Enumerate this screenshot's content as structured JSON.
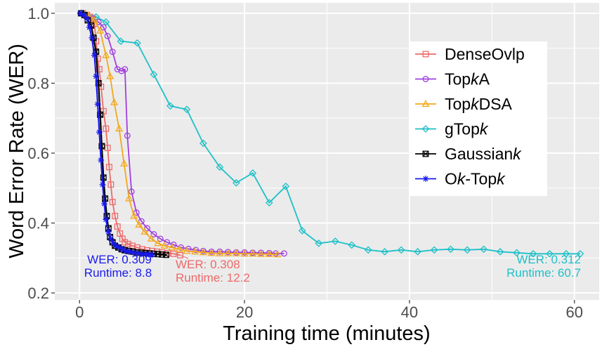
{
  "chart_data": {
    "type": "line",
    "title": "",
    "xlabel": "Training time (minutes)",
    "ylabel": "Word Error Rate (WER)",
    "xlim": [
      -3,
      63
    ],
    "ylim": [
      0.18,
      1.03
    ],
    "grid": true,
    "legend_position": "top-right",
    "x_ticks": [
      0,
      20,
      40,
      60
    ],
    "x_tick_labels": [
      "0",
      "20",
      "40",
      "60"
    ],
    "y_ticks": [
      0.2,
      0.4,
      0.6,
      0.8,
      1.0
    ],
    "y_tick_labels": [
      "0.2",
      "0.4",
      "0.6",
      "0.8",
      "1.0"
    ],
    "series": [
      {
        "name": "DenseOvlp",
        "legend": {
          "pre": "DenseOvlp",
          "italic": "",
          "post": ""
        },
        "color": "#ee6a6a",
        "marker": "square",
        "points": [
          [
            0.4,
            1.0
          ],
          [
            0.9,
            0.995
          ],
          [
            1.3,
            0.99
          ],
          [
            1.6,
            0.985
          ],
          [
            1.8,
            0.97
          ],
          [
            2.0,
            0.92
          ],
          [
            2.2,
            0.87
          ],
          [
            2.4,
            0.84
          ],
          [
            2.6,
            0.79
          ],
          [
            2.9,
            0.72
          ],
          [
            3.2,
            0.67
          ],
          [
            3.4,
            0.615
          ],
          [
            3.6,
            0.56
          ],
          [
            3.8,
            0.51
          ],
          [
            4.0,
            0.46
          ],
          [
            4.3,
            0.42
          ],
          [
            4.6,
            0.39
          ],
          [
            4.9,
            0.37
          ],
          [
            5.2,
            0.355
          ],
          [
            5.5,
            0.345
          ],
          [
            5.9,
            0.34
          ],
          [
            6.4,
            0.335
          ],
          [
            7.0,
            0.33
          ],
          [
            7.6,
            0.325
          ],
          [
            8.2,
            0.322
          ],
          [
            8.8,
            0.32
          ],
          [
            9.4,
            0.318
          ],
          [
            10.0,
            0.316
          ],
          [
            10.7,
            0.314
          ],
          [
            11.4,
            0.312
          ],
          [
            12.2,
            0.308
          ]
        ]
      },
      {
        "name": "TopkA",
        "legend": {
          "pre": "Top",
          "italic": "k",
          "post": "A"
        },
        "color": "#a040dd",
        "marker": "circle",
        "points": [
          [
            0.1,
            1.0
          ],
          [
            0.8,
            0.99
          ],
          [
            1.6,
            0.985
          ],
          [
            2.3,
            0.975
          ],
          [
            2.9,
            0.96
          ],
          [
            3.4,
            0.935
          ],
          [
            4.0,
            0.89
          ],
          [
            4.6,
            0.84
          ],
          [
            5.1,
            0.835
          ],
          [
            5.5,
            0.84
          ],
          [
            5.8,
            0.65
          ],
          [
            6.3,
            0.49
          ],
          [
            6.9,
            0.43
          ],
          [
            7.5,
            0.405
          ],
          [
            8.2,
            0.385
          ],
          [
            9.0,
            0.368
          ],
          [
            9.8,
            0.355
          ],
          [
            10.6,
            0.345
          ],
          [
            11.4,
            0.338
          ],
          [
            12.3,
            0.33
          ],
          [
            13.2,
            0.326
          ],
          [
            14.1,
            0.323
          ],
          [
            15.0,
            0.32
          ],
          [
            16.0,
            0.318
          ],
          [
            17.0,
            0.318
          ],
          [
            18.0,
            0.317
          ],
          [
            19.0,
            0.316
          ],
          [
            20.0,
            0.316
          ],
          [
            21.0,
            0.315
          ],
          [
            22.0,
            0.315
          ],
          [
            23.0,
            0.314
          ],
          [
            23.8,
            0.313
          ],
          [
            24.8,
            0.313
          ]
        ]
      },
      {
        "name": "TopkDSA",
        "legend": {
          "pre": "Top",
          "italic": "k",
          "post": "DSA"
        },
        "color": "#f2a81d",
        "marker": "triangle",
        "points": [
          [
            0.2,
            1.0
          ],
          [
            1.0,
            0.995
          ],
          [
            1.8,
            0.98
          ],
          [
            2.5,
            0.95
          ],
          [
            3.2,
            0.88
          ],
          [
            3.7,
            0.82
          ],
          [
            4.2,
            0.745
          ],
          [
            4.8,
            0.67
          ],
          [
            5.4,
            0.57
          ],
          [
            6.0,
            0.47
          ],
          [
            6.6,
            0.42
          ],
          [
            7.2,
            0.395
          ],
          [
            7.9,
            0.375
          ],
          [
            8.7,
            0.355
          ],
          [
            9.5,
            0.342
          ],
          [
            10.3,
            0.335
          ],
          [
            11.2,
            0.33
          ],
          [
            12.1,
            0.325
          ],
          [
            13.0,
            0.32
          ],
          [
            14.0,
            0.318
          ],
          [
            15.0,
            0.316
          ],
          [
            16.0,
            0.314
          ],
          [
            17.0,
            0.313
          ],
          [
            18.0,
            0.313
          ],
          [
            19.0,
            0.313
          ],
          [
            20.0,
            0.312
          ],
          [
            21.0,
            0.312
          ],
          [
            22.0,
            0.311
          ],
          [
            23.0,
            0.311
          ],
          [
            24.0,
            0.31
          ]
        ]
      },
      {
        "name": "gTopk",
        "legend": {
          "pre": "gTop",
          "italic": "k",
          "post": ""
        },
        "color": "#1ec0c8",
        "marker": "diamond",
        "points": [
          [
            0.3,
            1.0
          ],
          [
            2.0,
            0.99
          ],
          [
            3.2,
            0.975
          ],
          [
            5.0,
            0.92
          ],
          [
            7.0,
            0.915
          ],
          [
            9.0,
            0.825
          ],
          [
            11.0,
            0.735
          ],
          [
            13.0,
            0.725
          ],
          [
            15.0,
            0.628
          ],
          [
            17.0,
            0.56
          ],
          [
            19.0,
            0.515
          ],
          [
            21.0,
            0.543
          ],
          [
            23.0,
            0.458
          ],
          [
            25.0,
            0.505
          ],
          [
            27.0,
            0.378
          ],
          [
            29.0,
            0.342
          ],
          [
            31.0,
            0.348
          ],
          [
            33.0,
            0.337
          ],
          [
            35.0,
            0.323
          ],
          [
            37.0,
            0.318
          ],
          [
            39.0,
            0.323
          ],
          [
            41.0,
            0.318
          ],
          [
            43.0,
            0.323
          ],
          [
            45.0,
            0.325
          ],
          [
            47.0,
            0.323
          ],
          [
            49.0,
            0.325
          ],
          [
            51.0,
            0.318
          ],
          [
            53.0,
            0.315
          ],
          [
            55.0,
            0.312
          ],
          [
            57.0,
            0.312
          ],
          [
            59.0,
            0.312
          ],
          [
            60.7,
            0.312
          ]
        ]
      },
      {
        "name": "Gaussiank",
        "legend": {
          "pre": "Gaussian",
          "italic": "k",
          "post": ""
        },
        "color": "#000000",
        "marker": "boxcross",
        "points": [
          [
            0.2,
            1.0
          ],
          [
            0.6,
            0.995
          ],
          [
            1.0,
            0.98
          ],
          [
            1.4,
            0.965
          ],
          [
            1.7,
            0.93
          ],
          [
            2.0,
            0.89
          ],
          [
            2.3,
            0.8
          ],
          [
            2.5,
            0.71
          ],
          [
            2.7,
            0.62
          ],
          [
            2.9,
            0.53
          ],
          [
            3.1,
            0.47
          ],
          [
            3.3,
            0.42
          ],
          [
            3.5,
            0.385
          ],
          [
            3.7,
            0.36
          ],
          [
            4.0,
            0.345
          ],
          [
            4.3,
            0.335
          ],
          [
            4.7,
            0.33
          ],
          [
            5.1,
            0.325
          ],
          [
            5.5,
            0.322
          ],
          [
            6.0,
            0.32
          ],
          [
            6.5,
            0.318
          ],
          [
            7.0,
            0.316
          ],
          [
            7.5,
            0.315
          ],
          [
            8.0,
            0.314
          ],
          [
            8.5,
            0.313
          ],
          [
            9.0,
            0.312
          ],
          [
            9.5,
            0.311
          ],
          [
            10.0,
            0.31
          ],
          [
            10.5,
            0.309
          ]
        ]
      },
      {
        "name": "Ok-Topk",
        "legend": {
          "pre": "O",
          "italic": "k",
          "post": "-Top",
          "italic2": "k"
        },
        "color": "#1a1aee",
        "marker": "asterisk",
        "points": [
          [
            0.1,
            1.0
          ],
          [
            0.5,
            0.995
          ],
          [
            0.9,
            0.985
          ],
          [
            1.2,
            0.96
          ],
          [
            1.5,
            0.93
          ],
          [
            1.8,
            0.88
          ],
          [
            2.0,
            0.82
          ],
          [
            2.2,
            0.74
          ],
          [
            2.4,
            0.66
          ],
          [
            2.6,
            0.58
          ],
          [
            2.8,
            0.51
          ],
          [
            3.0,
            0.455
          ],
          [
            3.2,
            0.41
          ],
          [
            3.5,
            0.375
          ],
          [
            3.8,
            0.355
          ],
          [
            4.1,
            0.342
          ],
          [
            4.4,
            0.335
          ],
          [
            4.8,
            0.33
          ],
          [
            5.2,
            0.325
          ],
          [
            5.6,
            0.32
          ],
          [
            6.0,
            0.318
          ],
          [
            6.5,
            0.316
          ],
          [
            7.0,
            0.314
          ],
          [
            7.5,
            0.312
          ],
          [
            8.0,
            0.311
          ],
          [
            8.4,
            0.31
          ],
          [
            8.8,
            0.309
          ]
        ]
      }
    ],
    "annotations": [
      {
        "name": "ok-topk",
        "color": "#1a1aee",
        "wer": "WER: 0.309",
        "runtime": "Runtime: 8.8"
      },
      {
        "name": "denseovlp",
        "color": "#ee6a6a",
        "wer": "WER: 0.308",
        "runtime": "Runtime: 12.2"
      },
      {
        "name": "gtopk",
        "color": "#1ec0c8",
        "wer": "WER: 0.312",
        "runtime": "Runtime: 60.7"
      }
    ]
  }
}
